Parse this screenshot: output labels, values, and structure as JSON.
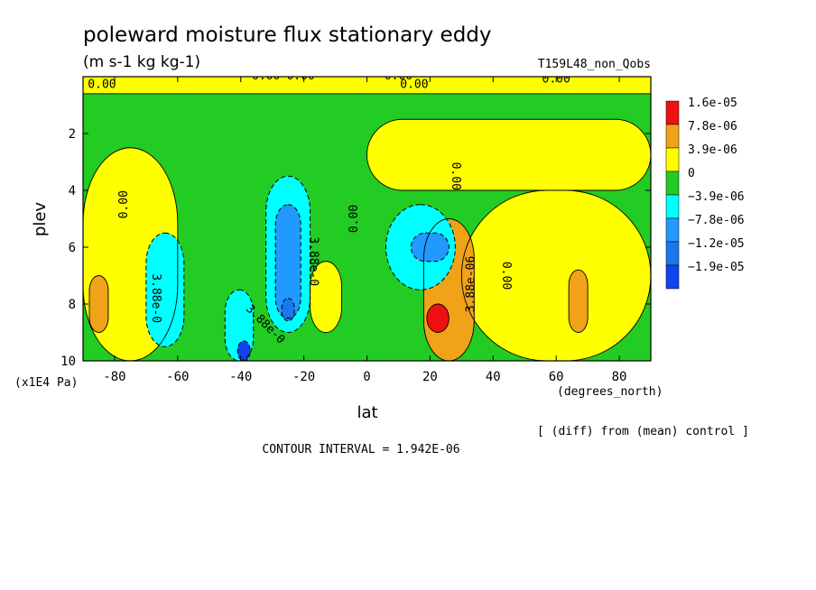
{
  "chart_data": {
    "type": "heatmap",
    "title": "poleward moisture flux stationary eddy",
    "units": "(m s-1 kg kg-1)",
    "run_label": "T159L48_non_Qobs",
    "xlabel": "lat",
    "xunits": "(degrees_north)",
    "ylabel": "plev",
    "yunits": "(x1E4 Pa)",
    "xlim": [
      -90,
      90
    ],
    "ylim": [
      10,
      0
    ],
    "x_ticks": [
      -80,
      -60,
      -40,
      -20,
      0,
      20,
      40,
      60,
      80
    ],
    "x_tick_labels": [
      "-80",
      "-60",
      "-40",
      "-20",
      "0",
      "20",
      "40",
      "60",
      "80"
    ],
    "y_ticks": [
      2,
      4,
      6,
      8,
      10
    ],
    "y_tick_labels": [
      "2",
      "4",
      "6",
      "8",
      "10"
    ],
    "legend": {
      "placement": "right",
      "entries": [
        {
          "label": "1.6e-05",
          "color": "#ee1111"
        },
        {
          "label": "7.8e-06",
          "color": "#f0a318"
        },
        {
          "label": "3.9e-06",
          "color": "#ffff00"
        },
        {
          "label": "0",
          "color": "#22cc22"
        },
        {
          "label": "−3.9e-06",
          "color": "#00ffff"
        },
        {
          "label": "−7.8e-06",
          "color": "#2299ff"
        },
        {
          "label": "−1.2e-05",
          "color": "#1a78ee"
        },
        {
          "label": "−1.9e-05",
          "color": "#1144ee"
        }
      ]
    },
    "annotations": {
      "contour_interval": "CONTOUR INTERVAL = 1.942E-06",
      "note": "[ (diff) from (mean) control ]"
    },
    "contour_labels": [
      "0.00",
      "0.00",
      "0.00",
      "0.00",
      "0.00",
      "0.00",
      "0.00",
      "0.00",
      "0.00",
      "0.00",
      "3.88e-0",
      "3.88e-0",
      "3.88e-0",
      "3.88e-06"
    ],
    "regions": [
      {
        "level": "zero",
        "lat": [
          -90,
          90
        ],
        "plev": [
          0,
          10
        ]
      },
      {
        "level": "pos1",
        "lat": [
          -90,
          90
        ],
        "plev": [
          0.0,
          0.6
        ]
      },
      {
        "level": "pos1",
        "lat": [
          -90,
          -60
        ],
        "plev": [
          2.5,
          10
        ]
      },
      {
        "level": "pos1",
        "lat": [
          0,
          90
        ],
        "plev": [
          1.5,
          4.0
        ]
      },
      {
        "level": "pos1",
        "lat": [
          30,
          90
        ],
        "plev": [
          4.0,
          10
        ]
      },
      {
        "level": "pos1",
        "lat": [
          -18,
          -8
        ],
        "plev": [
          6.5,
          9.0
        ]
      },
      {
        "level": "pos2",
        "lat": [
          -88,
          -82
        ],
        "plev": [
          7.0,
          9.0
        ]
      },
      {
        "level": "pos2",
        "lat": [
          64,
          70
        ],
        "plev": [
          6.8,
          9.0
        ]
      },
      {
        "level": "pos2",
        "lat": [
          18,
          34
        ],
        "plev": [
          5.0,
          10
        ]
      },
      {
        "level": "pos3",
        "lat": [
          19,
          26
        ],
        "plev": [
          8.0,
          9.0
        ]
      },
      {
        "level": "neg1",
        "lat": [
          -70,
          -58
        ],
        "plev": [
          5.5,
          9.5
        ]
      },
      {
        "level": "neg1",
        "lat": [
          -32,
          -18
        ],
        "plev": [
          3.5,
          9.0
        ]
      },
      {
        "level": "neg1",
        "lat": [
          -45,
          -36
        ],
        "plev": [
          7.5,
          10
        ]
      },
      {
        "level": "neg1",
        "lat": [
          6,
          28
        ],
        "plev": [
          4.5,
          7.5
        ]
      },
      {
        "level": "neg2",
        "lat": [
          -29,
          -21
        ],
        "plev": [
          4.5,
          8.5
        ]
      },
      {
        "level": "neg2",
        "lat": [
          14,
          26
        ],
        "plev": [
          5.5,
          6.5
        ]
      },
      {
        "level": "neg3",
        "lat": [
          -27,
          -23
        ],
        "plev": [
          7.8,
          8.6
        ]
      },
      {
        "level": "neg4",
        "lat": [
          -41,
          -37
        ],
        "plev": [
          9.3,
          10
        ]
      }
    ]
  }
}
